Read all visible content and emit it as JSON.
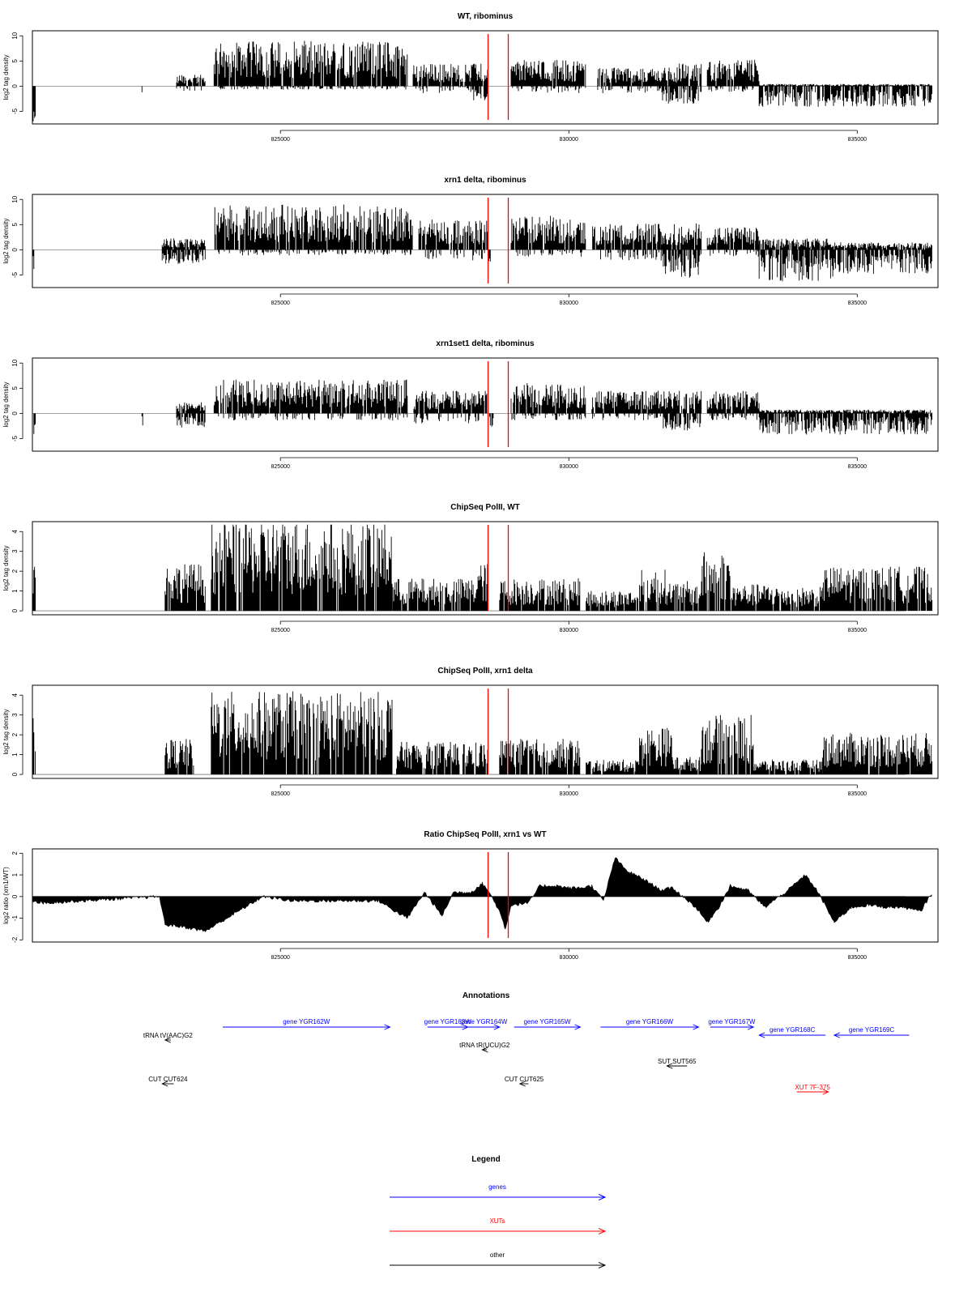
{
  "colors": {
    "marker": "#ff0000",
    "gene": "#0000ff",
    "xut": "#ff0000",
    "other": "#000000",
    "signal": "#000000"
  },
  "chart_data": [
    {
      "type": "bar",
      "title": "WT, ribominus",
      "ylabel": "log2 tag density",
      "xlim": [
        820700,
        836400
      ],
      "ylim": [
        -7.5,
        11
      ],
      "yticks": [
        -5,
        0,
        5,
        10
      ],
      "xticks": [
        825000,
        830000,
        835000
      ],
      "xtick_labels": [
        "825000",
        "830000",
        "835000"
      ],
      "markers": [
        828600,
        828950
      ],
      "segments": [
        {
          "from": 820700,
          "to": 820760,
          "pos": 0,
          "neg": 5
        },
        {
          "from": 822600,
          "to": 822620,
          "pos": 0,
          "neg": 2
        },
        {
          "from": 823200,
          "to": 823700,
          "pos": 1.5,
          "neg": 1
        },
        {
          "from": 823850,
          "to": 827200,
          "pos": 6,
          "neg": 0.5
        },
        {
          "from": 827300,
          "to": 828300,
          "pos": 3,
          "neg": 1
        },
        {
          "from": 828300,
          "to": 828600,
          "pos": 3,
          "neg": 2
        },
        {
          "from": 829000,
          "to": 830300,
          "pos": 3.5,
          "neg": 1
        },
        {
          "from": 830500,
          "to": 831600,
          "pos": 2.5,
          "neg": 1
        },
        {
          "from": 831600,
          "to": 832300,
          "pos": 3,
          "neg": 2.5
        },
        {
          "from": 832400,
          "to": 833300,
          "pos": 3.5,
          "neg": 0.8
        },
        {
          "from": 833300,
          "to": 836300,
          "pos": 0.3,
          "neg": 3
        }
      ]
    },
    {
      "type": "bar",
      "title": "xrn1 delta, ribominus",
      "ylabel": "log2 tag density",
      "xlim": [
        820700,
        836400
      ],
      "ylim": [
        -7.5,
        11
      ],
      "yticks": [
        -5,
        0,
        5,
        10
      ],
      "xticks": [
        825000,
        830000,
        835000
      ],
      "xtick_labels": [
        "825000",
        "830000",
        "835000"
      ],
      "markers": [
        828600,
        828950
      ],
      "segments": [
        {
          "from": 820700,
          "to": 820760,
          "pos": 0,
          "neg": 5
        },
        {
          "from": 822950,
          "to": 823700,
          "pos": 1.5,
          "neg": 2
        },
        {
          "from": 823850,
          "to": 827300,
          "pos": 6,
          "neg": 0.8
        },
        {
          "from": 827400,
          "to": 828600,
          "pos": 4,
          "neg": 1.5
        },
        {
          "from": 828600,
          "to": 828650,
          "pos": 0,
          "neg": 4
        },
        {
          "from": 829000,
          "to": 830300,
          "pos": 4.5,
          "neg": 1
        },
        {
          "from": 830400,
          "to": 831600,
          "pos": 3.5,
          "neg": 1.5
        },
        {
          "from": 831600,
          "to": 832300,
          "pos": 3.5,
          "neg": 4
        },
        {
          "from": 832400,
          "to": 833300,
          "pos": 3,
          "neg": 1
        },
        {
          "from": 833300,
          "to": 834600,
          "pos": 1.5,
          "neg": 4.5
        },
        {
          "from": 834600,
          "to": 836300,
          "pos": 1,
          "neg": 3.5
        }
      ]
    },
    {
      "type": "bar",
      "title": "xrn1set1 delta, ribominus",
      "ylabel": "log2 tag density",
      "xlim": [
        820700,
        836400
      ],
      "ylim": [
        -7.5,
        11
      ],
      "yticks": [
        -5,
        0,
        5,
        10
      ],
      "xticks": [
        825000,
        830000,
        835000
      ],
      "xtick_labels": [
        "825000",
        "830000",
        "835000"
      ],
      "markers": [
        828600,
        828950
      ],
      "segments": [
        {
          "from": 820700,
          "to": 820760,
          "pos": 0,
          "neg": 4
        },
        {
          "from": 822600,
          "to": 822620,
          "pos": 0,
          "neg": 2
        },
        {
          "from": 823200,
          "to": 823700,
          "pos": 1.5,
          "neg": 2
        },
        {
          "from": 823850,
          "to": 827200,
          "pos": 4.5,
          "neg": 1
        },
        {
          "from": 827300,
          "to": 828600,
          "pos": 3,
          "neg": 1.5
        },
        {
          "from": 828600,
          "to": 828700,
          "pos": 0,
          "neg": 2.5
        },
        {
          "from": 829000,
          "to": 830300,
          "pos": 4,
          "neg": 1
        },
        {
          "from": 830400,
          "to": 831600,
          "pos": 3,
          "neg": 1
        },
        {
          "from": 831600,
          "to": 832300,
          "pos": 3,
          "neg": 2.5
        },
        {
          "from": 832400,
          "to": 833300,
          "pos": 3,
          "neg": 1
        },
        {
          "from": 833300,
          "to": 836300,
          "pos": 0.5,
          "neg": 3
        }
      ]
    },
    {
      "type": "bar",
      "title": "ChipSeq PolII, WT",
      "ylabel": "log2 tag density",
      "xlim": [
        820700,
        836400
      ],
      "ylim": [
        -0.2,
        4.5
      ],
      "yticks": [
        0,
        1,
        2,
        3,
        4
      ],
      "xticks": [
        825000,
        830000,
        835000
      ],
      "xtick_labels": [
        "825000",
        "830000",
        "835000"
      ],
      "markers": [
        828600,
        828950
      ],
      "segments": [
        {
          "from": 820700,
          "to": 820760,
          "pos": 2.1,
          "neg": 0
        },
        {
          "from": 823000,
          "to": 823700,
          "pos": 1.6,
          "neg": 0
        },
        {
          "from": 823800,
          "to": 826950,
          "pos": 3.1,
          "neg": 0
        },
        {
          "from": 826950,
          "to": 828400,
          "pos": 1.1,
          "neg": 0
        },
        {
          "from": 828400,
          "to": 828600,
          "pos": 1.6,
          "neg": 0
        },
        {
          "from": 828800,
          "to": 830200,
          "pos": 1.1,
          "neg": 0
        },
        {
          "from": 830300,
          "to": 831200,
          "pos": 0.7,
          "neg": 0
        },
        {
          "from": 831200,
          "to": 831700,
          "pos": 1.4,
          "neg": 0
        },
        {
          "from": 831700,
          "to": 832300,
          "pos": 1,
          "neg": 0
        },
        {
          "from": 832300,
          "to": 832800,
          "pos": 2,
          "neg": 0
        },
        {
          "from": 832800,
          "to": 833700,
          "pos": 0.9,
          "neg": 0
        },
        {
          "from": 833700,
          "to": 834400,
          "pos": 0.8,
          "neg": 0
        },
        {
          "from": 834400,
          "to": 836300,
          "pos": 1.5,
          "neg": 0
        }
      ]
    },
    {
      "type": "bar",
      "title": "ChipSeq PolII, xrn1 delta",
      "ylabel": "log2 tag density",
      "xlim": [
        820700,
        836400
      ],
      "ylim": [
        -0.2,
        4.5
      ],
      "yticks": [
        0,
        1,
        2,
        3,
        4
      ],
      "xticks": [
        825000,
        830000,
        835000
      ],
      "xtick_labels": [
        "825000",
        "830000",
        "835000"
      ],
      "markers": [
        828600,
        828950
      ],
      "segments": [
        {
          "from": 820700,
          "to": 820760,
          "pos": 1.9,
          "neg": 0
        },
        {
          "from": 823000,
          "to": 823500,
          "pos": 1.2,
          "neg": 0
        },
        {
          "from": 823800,
          "to": 826950,
          "pos": 2.8,
          "neg": 0
        },
        {
          "from": 827000,
          "to": 828600,
          "pos": 1.1,
          "neg": 0
        },
        {
          "from": 828800,
          "to": 830200,
          "pos": 1.2,
          "neg": 0
        },
        {
          "from": 830300,
          "to": 831200,
          "pos": 0.5,
          "neg": 0
        },
        {
          "from": 831200,
          "to": 831800,
          "pos": 1.6,
          "neg": 0
        },
        {
          "from": 831800,
          "to": 832300,
          "pos": 0.6,
          "neg": 0
        },
        {
          "from": 832300,
          "to": 833200,
          "pos": 2,
          "neg": 0
        },
        {
          "from": 833200,
          "to": 834400,
          "pos": 0.5,
          "neg": 0
        },
        {
          "from": 834400,
          "to": 836300,
          "pos": 1.4,
          "neg": 0
        }
      ]
    },
    {
      "type": "area",
      "title": "Ratio ChipSeq PolII, xrn1 vs WT",
      "ylabel": "log2 ratio (xrn1/WT)",
      "xlim": [
        820700,
        836400
      ],
      "ylim": [
        -2.1,
        2.2
      ],
      "yticks": [
        -2,
        -1,
        0,
        1,
        2
      ],
      "xticks": [
        825000,
        830000,
        835000
      ],
      "xtick_labels": [
        "825000",
        "830000",
        "835000"
      ],
      "markers": [
        828600,
        828950
      ],
      "x": [
        820700,
        820900,
        822900,
        823000,
        823300,
        823700,
        824200,
        824700,
        825200,
        825700,
        826200,
        826700,
        827000,
        827200,
        827500,
        827800,
        828000,
        828300,
        828500,
        828600,
        828800,
        828900,
        829000,
        829300,
        829500,
        829800,
        830000,
        830200,
        830400,
        830600,
        830800,
        831000,
        831300,
        831600,
        831800,
        832200,
        832400,
        832600,
        832800,
        833100,
        833400,
        833800,
        834100,
        834300,
        834600,
        834900,
        835200,
        835500,
        835800,
        836100,
        836300
      ],
      "y": [
        -0.2,
        -0.3,
        0,
        -1.3,
        -1.4,
        -1.6,
        -0.8,
        0,
        -0.2,
        -0.2,
        -0.2,
        -0.2,
        -0.7,
        -1,
        0.2,
        -0.9,
        0.2,
        0.2,
        0.6,
        0.3,
        -0.7,
        -1.5,
        -0.4,
        -0.3,
        0.5,
        0.5,
        0.4,
        0.4,
        0.5,
        -0.2,
        1.8,
        1.2,
        0.8,
        0.3,
        0.4,
        -0.5,
        -1.2,
        -0.5,
        0.5,
        0.3,
        -0.5,
        0.3,
        1,
        0.3,
        -1.2,
        -0.5,
        -0.4,
        -0.5,
        -0.5,
        -0.7,
        0.2
      ]
    }
  ],
  "annotations": {
    "title": "Annotations",
    "items": [
      {
        "label": "gene YGR162W",
        "kind": "gene",
        "dir": 1,
        "from": 824000,
        "to": 826900,
        "row": 0
      },
      {
        "label": "gene YGR163W",
        "kind": "gene",
        "dir": 1,
        "from": 827550,
        "to": 828250,
        "row": 0
      },
      {
        "label": "gene YGR164W",
        "kind": "gene",
        "dir": 1,
        "from": 828250,
        "to": 828800,
        "row": 0
      },
      {
        "label": "gene YGR165W",
        "kind": "gene",
        "dir": 1,
        "from": 829050,
        "to": 830200,
        "row": 0
      },
      {
        "label": "gene YGR166W",
        "kind": "gene",
        "dir": 1,
        "from": 830550,
        "to": 832250,
        "row": 0
      },
      {
        "label": "gene YGR167W",
        "kind": "gene",
        "dir": 1,
        "from": 832450,
        "to": 833200,
        "row": 0
      },
      {
        "label": "gene YGR168C",
        "kind": "gene",
        "dir": -1,
        "from": 833300,
        "to": 834450,
        "row": 1
      },
      {
        "label": "gene YGR169C",
        "kind": "gene",
        "dir": -1,
        "from": 834600,
        "to": 835900,
        "row": 1
      },
      {
        "label": "tRNA tV(AAC)G2",
        "kind": "other",
        "dir": -1,
        "from": 823000,
        "to": 823100,
        "row": 2
      },
      {
        "label": "tRNA tR(UCU)G2",
        "kind": "other",
        "dir": -1,
        "from": 828500,
        "to": 828580,
        "row": 3
      },
      {
        "label": "SUT SUT565",
        "kind": "other",
        "dir": -1,
        "from": 831700,
        "to": 832050,
        "row": 4
      },
      {
        "label": "CUT CUT624",
        "kind": "other",
        "dir": -1,
        "from": 822950,
        "to": 823150,
        "row": 5
      },
      {
        "label": "CUT CUT625",
        "kind": "other",
        "dir": -1,
        "from": 829150,
        "to": 829300,
        "row": 5
      },
      {
        "label": "XUT 7F-375",
        "kind": "xut",
        "dir": 1,
        "from": 833950,
        "to": 834500,
        "row": 6
      }
    ]
  },
  "legend": {
    "title": "Legend",
    "entries": [
      {
        "label": "genes",
        "kind": "gene"
      },
      {
        "label": "XUTs",
        "kind": "xut"
      },
      {
        "label": "other",
        "kind": "other"
      }
    ]
  }
}
